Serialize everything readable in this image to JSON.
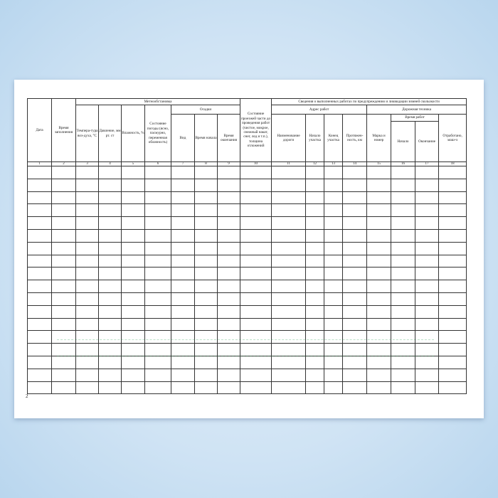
{
  "headers": {
    "date": "Дата",
    "fill_time": "Время заполнения",
    "weather": "Метеообстановка",
    "temp": "Темпера-тура воз-духа, °С",
    "pressure": "Давление, мм рт. ст",
    "humidity": "Влажность, %",
    "weather_state": "Состояние погоды (ясно, пасмурно, переменная облачность)",
    "precip": "Осадки",
    "precip_type": "Вид",
    "precip_start": "Время начала",
    "precip_end": "Время окончания",
    "road_state": "Состояние проезжей части до проведения работ (чистое, мокрое, снежный накат, снег, лед и т.п.), толщина отложений",
    "works": "Сведения о выполненных работах по предупреждению и ликвидации зимней скользкости",
    "address": "Адрес работ",
    "road_name": "Наименование дороги",
    "section_start": "Начало участка",
    "section_end": "Конец участка",
    "length": "Протяжен-ность, км",
    "equipment": "Дорожная техника",
    "brand": "Марка и номер",
    "work_time": "Время работ",
    "wt_start": "Начало",
    "wt_end": "Окончание",
    "worked": "Отработано, маш-ч"
  },
  "column_numbers": [
    "1",
    "2",
    "3",
    "4",
    "5",
    "6",
    "7",
    "8",
    "9",
    "10",
    "11",
    "12",
    "13",
    "14",
    "15",
    "16",
    "17",
    "18"
  ],
  "page_number": "2"
}
